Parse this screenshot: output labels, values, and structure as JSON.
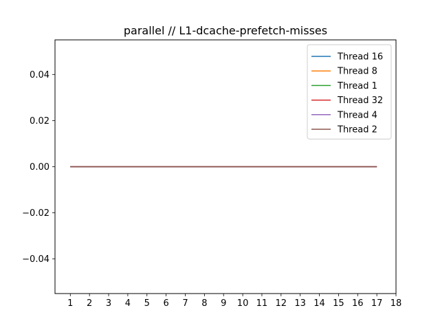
{
  "chart_data": {
    "type": "line",
    "title": "parallel // L1-dcache-prefetch-misses",
    "xlabel": "",
    "ylabel": "",
    "x": [
      1,
      2,
      3,
      4,
      5,
      6,
      7,
      8,
      9,
      10,
      11,
      12,
      13,
      14,
      15,
      16,
      17
    ],
    "xticks": [
      1,
      2,
      3,
      4,
      5,
      6,
      7,
      8,
      9,
      10,
      11,
      12,
      13,
      14,
      15,
      16,
      17,
      18
    ],
    "xlim": [
      0.2,
      18.0
    ],
    "yticks": [
      -0.04,
      -0.02,
      0.0,
      0.02,
      0.04
    ],
    "ytick_labels": [
      "−0.04",
      "−0.02",
      "0.00",
      "0.02",
      "0.04"
    ],
    "ylim": [
      -0.055,
      0.055
    ],
    "grid": false,
    "legend_position": "top-right",
    "series": [
      {
        "name": "Thread 16",
        "color": "#1f77b4",
        "values": [
          0,
          0,
          0,
          0,
          0,
          0,
          0,
          0,
          0,
          0,
          0,
          0,
          0,
          0,
          0,
          0,
          0
        ]
      },
      {
        "name": "Thread 8",
        "color": "#ff7f0e",
        "values": [
          0,
          0,
          0,
          0,
          0,
          0,
          0,
          0,
          0,
          0,
          0,
          0,
          0,
          0,
          0,
          0,
          0
        ]
      },
      {
        "name": "Thread 1",
        "color": "#2ca02c",
        "values": [
          0,
          0,
          0,
          0,
          0,
          0,
          0,
          0,
          0,
          0,
          0,
          0,
          0,
          0,
          0,
          0,
          0
        ]
      },
      {
        "name": "Thread 32",
        "color": "#d62728",
        "values": [
          0,
          0,
          0,
          0,
          0,
          0,
          0,
          0,
          0,
          0,
          0,
          0,
          0,
          0,
          0,
          0,
          0
        ]
      },
      {
        "name": "Thread 4",
        "color": "#9467bd",
        "values": [
          0,
          0,
          0,
          0,
          0,
          0,
          0,
          0,
          0,
          0,
          0,
          0,
          0,
          0,
          0,
          0,
          0
        ]
      },
      {
        "name": "Thread 2",
        "color": "#8c564b",
        "values": [
          0,
          0,
          0,
          0,
          0,
          0,
          0,
          0,
          0,
          0,
          0,
          0,
          0,
          0,
          0,
          0,
          0
        ]
      }
    ]
  }
}
